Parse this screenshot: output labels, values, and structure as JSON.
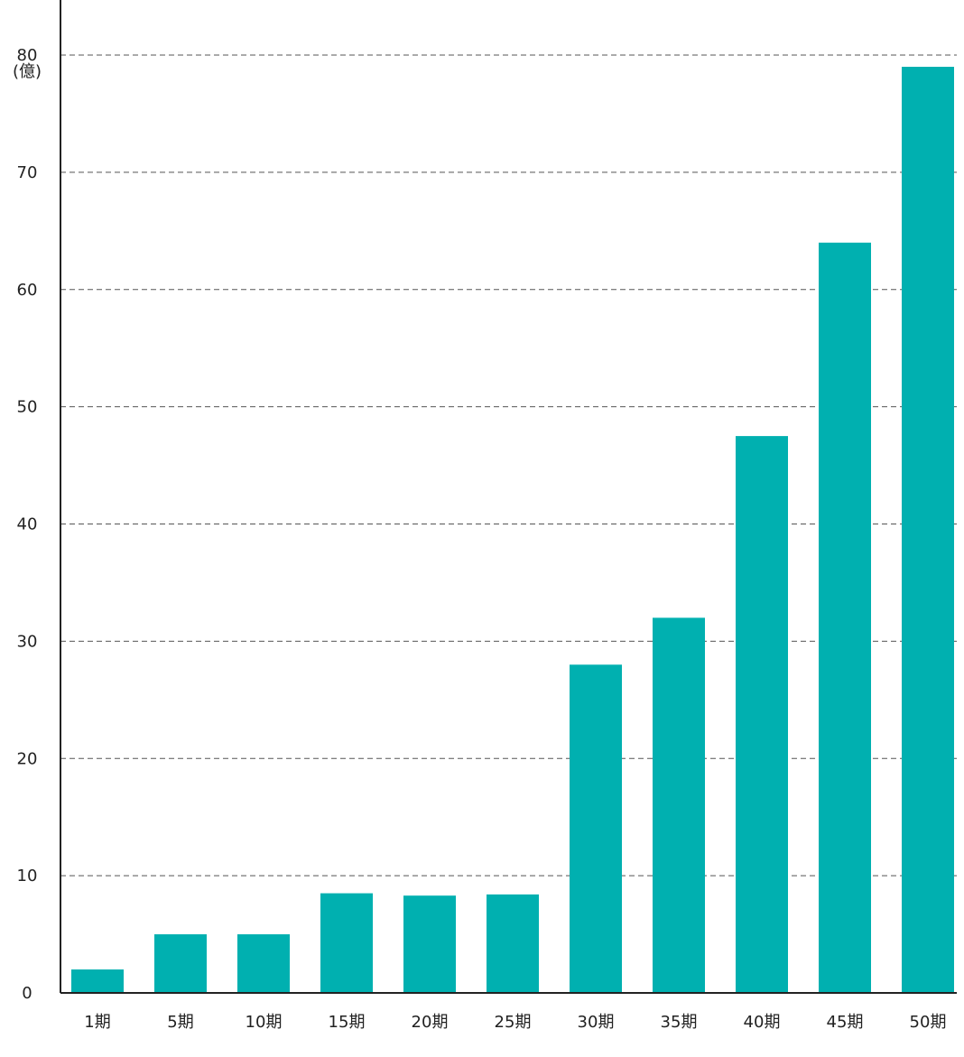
{
  "chart_data": {
    "type": "bar",
    "title": "",
    "xlabel": "",
    "ylabel": "",
    "y_unit": "(億)",
    "categories": [
      "1期",
      "5期",
      "10期",
      "15期",
      "20期",
      "25期",
      "30期",
      "35期",
      "40期",
      "45期",
      "50期"
    ],
    "values": [
      2,
      5,
      5,
      8.5,
      8.3,
      8.4,
      28,
      32,
      47.5,
      64,
      79
    ],
    "ylim": [
      0,
      80
    ],
    "yticks": [
      0,
      10,
      20,
      30,
      40,
      50,
      60,
      70,
      80
    ],
    "ytick_labels": [
      "0",
      "10",
      "20",
      "30",
      "40",
      "50",
      "60",
      "70",
      "80"
    ],
    "grid": "horizontal-dashed",
    "legend": "none",
    "bar_color": "#00b0b0",
    "axis_color": "#222222",
    "grid_color": "#555555"
  }
}
